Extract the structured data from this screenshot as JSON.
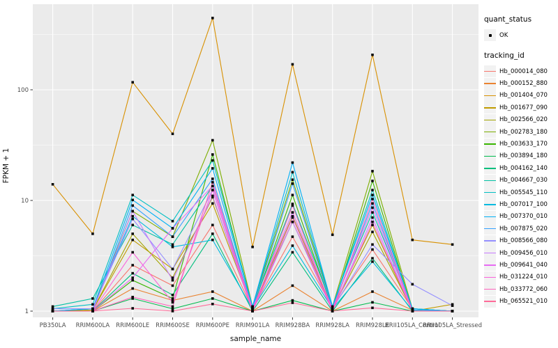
{
  "figure": {
    "background": "#ffffff",
    "panel_bg": "#ebebeb",
    "grid_color": "#ffffff",
    "tick_color": "#333333",
    "tick_label_color": "#4d4d4d",
    "axis_title_color": "#111111",
    "point_color": "#0a0a0a"
  },
  "chart_data": {
    "type": "line",
    "title": "",
    "xlabel": "sample_name",
    "ylabel": "FPKM + 1",
    "y_scale": "log10",
    "ylim": [
      1,
      560
    ],
    "y_ticks": [
      1,
      10,
      100
    ],
    "y_tick_labels": [
      "1",
      "10",
      "100"
    ],
    "y_minor_ticks": [
      3.162,
      31.62,
      316.2
    ],
    "grid": true,
    "legend_position": "right",
    "categories": [
      "PB350LA",
      "RRIM600LA",
      "RRIM600LE",
      "RRIM600SE",
      "RRIM600PE",
      "RRIM901LA",
      "RRIM928BA",
      "RRIM928LA",
      "RRIM928LE",
      "RRII105LA_Control",
      "RRII105LA_Stressed"
    ],
    "series": [
      {
        "name": "Hb_000014_080",
        "color": "#F8766D",
        "values": [
          1.0,
          1.0,
          2.6,
          1.7,
          6.0,
          1.05,
          4.7,
          1.08,
          3.6,
          1.05,
          1.0
        ]
      },
      {
        "name": "Hb_000152_880",
        "color": "#EA8331",
        "values": [
          1.0,
          1.0,
          1.6,
          1.25,
          1.5,
          1.0,
          1.7,
          1.0,
          1.5,
          1.02,
          1.0
        ]
      },
      {
        "name": "Hb_001404_070",
        "color": "#D89000",
        "values": [
          14.0,
          5.0,
          117.0,
          40.0,
          445.0,
          3.8,
          170.0,
          4.9,
          207.0,
          4.4,
          4.0
        ]
      },
      {
        "name": "Hb_001677_090",
        "color": "#C09B00",
        "values": [
          1.0,
          1.02,
          4.4,
          2.4,
          9.4,
          1.05,
          6.4,
          1.05,
          6.0,
          1.0,
          1.15
        ]
      },
      {
        "name": "Hb_002566_020",
        "color": "#A3A500",
        "values": [
          1.0,
          1.02,
          5.0,
          2.0,
          10.7,
          1.05,
          7.2,
          1.05,
          5.2,
          1.02,
          1.0
        ]
      },
      {
        "name": "Hb_002783_180",
        "color": "#7CAE00",
        "values": [
          1.0,
          1.05,
          8.0,
          4.7,
          35.0,
          1.1,
          15.4,
          1.1,
          18.4,
          1.05,
          1.0
        ]
      },
      {
        "name": "Hb_003633_170",
        "color": "#39B600",
        "values": [
          1.0,
          1.0,
          1.9,
          1.3,
          26.0,
          1.05,
          11.2,
          1.05,
          15.0,
          1.02,
          1.0
        ]
      },
      {
        "name": "Hb_003894_180",
        "color": "#00BB4E",
        "values": [
          1.0,
          1.0,
          1.3,
          1.05,
          1.3,
          1.0,
          1.25,
          1.0,
          1.2,
          1.0,
          1.0
        ]
      },
      {
        "name": "Hb_004162_140",
        "color": "#00BF7D",
        "values": [
          1.0,
          1.0,
          2.2,
          1.4,
          5.0,
          1.0,
          3.4,
          1.0,
          3.0,
          1.0,
          1.0
        ]
      },
      {
        "name": "Hb_004667_030",
        "color": "#00C1A3",
        "values": [
          1.1,
          1.3,
          6.0,
          4.0,
          13.5,
          1.1,
          9.3,
          1.1,
          7.8,
          1.05,
          1.0
        ]
      },
      {
        "name": "Hb_005545_110",
        "color": "#00BFC4",
        "values": [
          1.05,
          1.15,
          11.2,
          6.5,
          23.0,
          1.1,
          18.0,
          1.1,
          12.4,
          1.05,
          1.0
        ]
      },
      {
        "name": "Hb_007017_100",
        "color": "#00BAE0",
        "values": [
          1.0,
          1.05,
          7.2,
          3.8,
          4.4,
          1.05,
          3.9,
          1.05,
          2.8,
          1.02,
          1.0
        ]
      },
      {
        "name": "Hb_007370_010",
        "color": "#00B0F6",
        "values": [
          1.0,
          1.05,
          10.1,
          5.6,
          19.5,
          1.1,
          22.0,
          1.1,
          11.2,
          1.05,
          1.0
        ]
      },
      {
        "name": "Hb_007875_020",
        "color": "#35A2FF",
        "values": [
          1.0,
          1.0,
          9.0,
          4.7,
          15.7,
          1.05,
          14.2,
          1.05,
          9.4,
          1.02,
          1.0
        ]
      },
      {
        "name": "Hb_008566_080",
        "color": "#9590FF",
        "values": [
          1.05,
          1.05,
          6.8,
          2.4,
          12.4,
          1.05,
          7.8,
          1.05,
          4.0,
          1.75,
          1.12
        ]
      },
      {
        "name": "Hb_009456_010",
        "color": "#C77CFF",
        "values": [
          1.0,
          1.0,
          8.0,
          1.9,
          11.0,
          1.0,
          6.4,
          1.0,
          7.0,
          1.0,
          1.0
        ]
      },
      {
        "name": "Hb_009641_040",
        "color": "#E76BF3",
        "values": [
          1.0,
          1.0,
          2.0,
          5.6,
          13.5,
          1.05,
          7.8,
          1.05,
          8.6,
          1.0,
          1.0
        ]
      },
      {
        "name": "Hb_031224_010",
        "color": "#FA62DB",
        "values": [
          1.0,
          1.0,
          3.4,
          1.2,
          12.4,
          1.0,
          7.0,
          1.0,
          6.4,
          1.0,
          1.0
        ]
      },
      {
        "name": "Hb_033772_060",
        "color": "#FF62BC",
        "values": [
          1.0,
          1.0,
          1.34,
          1.1,
          14.6,
          1.0,
          9.0,
          1.0,
          10.3,
          1.0,
          1.0
        ]
      },
      {
        "name": "Hb_065521_010",
        "color": "#FF6A98",
        "values": [
          1.0,
          1.0,
          1.06,
          1.0,
          1.16,
          1.0,
          1.19,
          1.0,
          1.07,
          1.0,
          1.0
        ]
      }
    ],
    "legend": {
      "quant_title": "quant_status",
      "quant_items": [
        {
          "label": "OK",
          "shape": "point"
        }
      ],
      "tracking_title": "tracking_id"
    }
  }
}
